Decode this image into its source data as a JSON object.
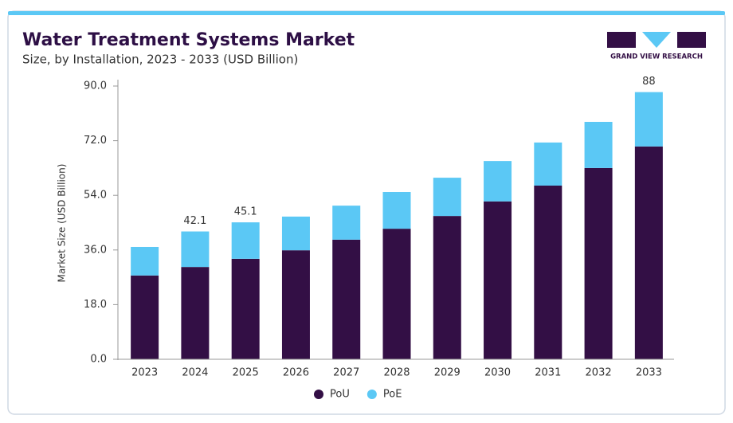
{
  "logo": "GRAND VIEW RESEARCH",
  "chart_data": {
    "type": "stacked-bar",
    "title": "Water Treatment Systems Market",
    "subtitle": "Size, by Installation, 2023 - 2033 (USD Billion)",
    "y_label": "Market Size (USD Billion)",
    "categories": [
      "2023",
      "2024",
      "2025",
      "2026",
      "2027",
      "2028",
      "2029",
      "2030",
      "2031",
      "2032",
      "2033"
    ],
    "series": [
      {
        "name": "PoU",
        "color": "#330f45",
        "values": [
          27.6,
          30.4,
          33.1,
          35.9,
          39.4,
          43.0,
          47.2,
          52.0,
          57.2,
          63.0,
          70.1
        ]
      },
      {
        "name": "PoE",
        "color": "#5bc8f5",
        "values": [
          9.4,
          11.7,
          12.0,
          11.1,
          11.2,
          12.1,
          12.6,
          13.3,
          14.2,
          15.2,
          17.9
        ]
      }
    ],
    "total_labels": [
      null,
      42.1,
      45.1,
      null,
      null,
      null,
      null,
      null,
      null,
      null,
      88.0
    ],
    "ylim": [
      0,
      90
    ],
    "yticks": [
      {
        "value": 0,
        "label": "0.0"
      },
      {
        "value": 18,
        "label": "18.0"
      },
      {
        "value": 36,
        "label": "36.0"
      },
      {
        "value": 54,
        "label": "54.0"
      },
      {
        "value": 72,
        "label": "72.0"
      },
      {
        "value": 90,
        "label": "90.0"
      }
    ],
    "legend": "bottom"
  }
}
